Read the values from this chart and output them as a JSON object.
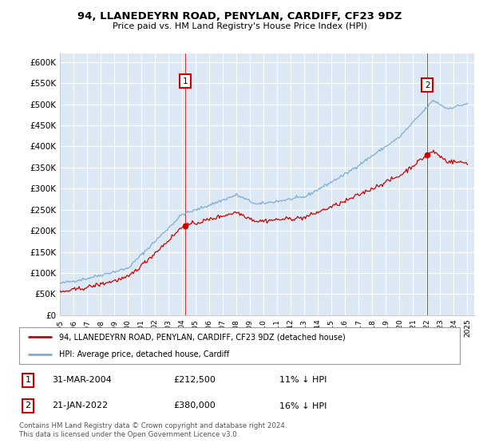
{
  "title": "94, LLANEDEYRN ROAD, PENYLAN, CARDIFF, CF23 9DZ",
  "subtitle": "Price paid vs. HM Land Registry's House Price Index (HPI)",
  "red_label": "94, LLANEDEYRN ROAD, PENYLAN, CARDIFF, CF23 9DZ (detached house)",
  "blue_label": "HPI: Average price, detached house, Cardiff",
  "annotation1_date": "31-MAR-2004",
  "annotation1_price": "£212,500",
  "annotation1_hpi": "11% ↓ HPI",
  "annotation2_date": "21-JAN-2022",
  "annotation2_price": "£380,000",
  "annotation2_hpi": "16% ↓ HPI",
  "footnote": "Contains HM Land Registry data © Crown copyright and database right 2024.\nThis data is licensed under the Open Government Licence v3.0.",
  "plot_bg_color": "#dce9f5",
  "ylim": [
    0,
    620000
  ],
  "yticks": [
    0,
    50000,
    100000,
    150000,
    200000,
    250000,
    300000,
    350000,
    400000,
    450000,
    500000,
    550000,
    600000
  ],
  "ytick_labels": [
    "£0",
    "£50K",
    "£100K",
    "£150K",
    "£200K",
    "£250K",
    "£300K",
    "£350K",
    "£400K",
    "£450K",
    "£500K",
    "£550K",
    "£600K"
  ],
  "red_color": "#cc0000",
  "blue_color": "#7dadd4",
  "vline_color": "#cc0000",
  "t1_year": 2004.25,
  "t2_year": 2022.05,
  "t1_price": 212500,
  "t2_price": 380000,
  "grid_color": "#ffffff",
  "spine_color": "#cccccc"
}
